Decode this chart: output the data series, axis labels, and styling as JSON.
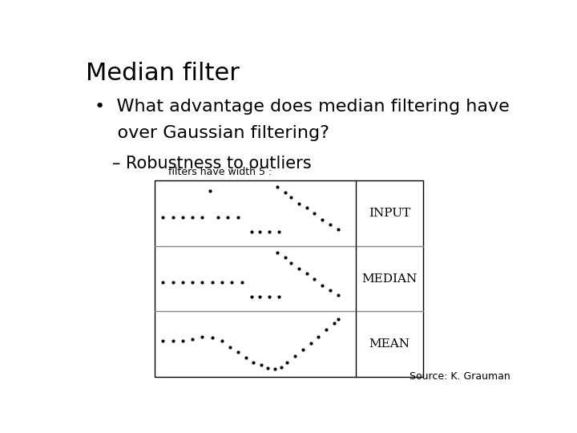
{
  "title": "Median filter",
  "bullet_line1": "•  What advantage does median filtering have",
  "bullet_line2": "    over Gaussian filtering?",
  "sub_bullet": "– Robustness to outliers",
  "caption": "filters have width 5 :",
  "source": "Source: K. Grauman",
  "background_color": "#ffffff",
  "title_fontsize": 22,
  "bullet_fontsize": 16,
  "sub_bullet_fontsize": 15,
  "caption_fontsize": 9,
  "source_fontsize": 9,
  "label_fontsize": 11,
  "row_labels": [
    "INPUT",
    "MEDIAN",
    "MEAN"
  ]
}
